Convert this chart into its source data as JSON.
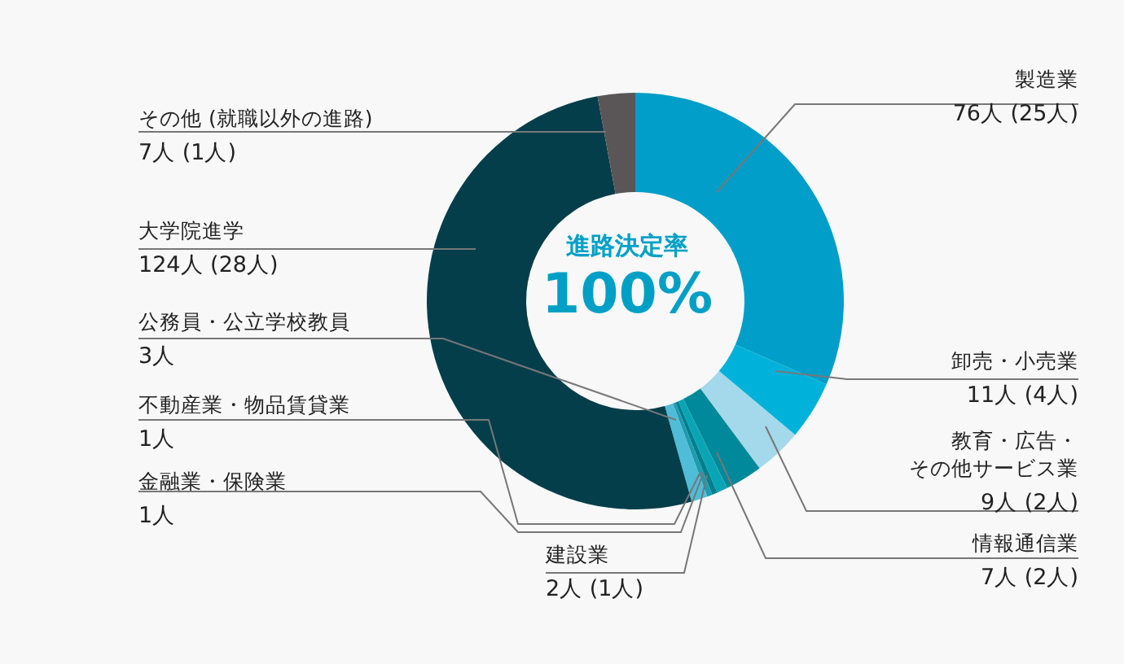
{
  "chart_data": {
    "type": "donut",
    "categories": [
      "製造業",
      "卸売・小売業",
      "教育・広告・その他サービス業",
      "情報通信業",
      "建設業",
      "金融業・保険業",
      "不動産業・物品賃貸業",
      "公務員・公立学校教員",
      "大学院進学",
      "その他 (就職以外の進路)"
    ],
    "values": [
      76,
      11,
      9,
      7,
      2,
      1,
      1,
      3,
      124,
      7
    ],
    "value_labels": [
      "76人 (25人)",
      "11人 (4人)",
      "9人 (2人)",
      "7人 (2人)",
      "2人 (1人)",
      "1人",
      "1人",
      "3人",
      "124人 (28人)",
      "7人 (1人)"
    ],
    "colors": [
      "#009ec8",
      "#00b2da",
      "#a3d9ea",
      "#00899a",
      "#0aa5b5",
      "#007f8f",
      "#1d9cb0",
      "#4fbcd8",
      "#033e4a",
      "#5a5657"
    ],
    "annotations": [
      "進路決定率",
      "100%"
    ],
    "legend": false
  }
}
